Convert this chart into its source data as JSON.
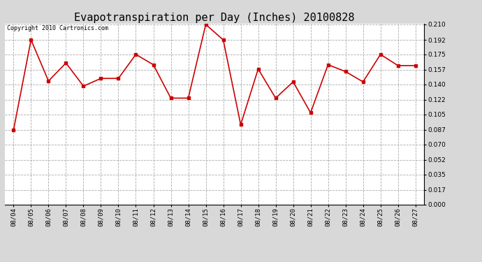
{
  "title": "Evapotranspiration per Day (Inches) 20100828",
  "copyright_text": "Copyright 2010 Cartronics.com",
  "dates": [
    "08/04",
    "08/05",
    "08/06",
    "08/07",
    "08/08",
    "08/09",
    "08/10",
    "08/11",
    "08/12",
    "08/13",
    "08/14",
    "08/15",
    "08/16",
    "08/17",
    "08/18",
    "08/19",
    "08/20",
    "08/21",
    "08/22",
    "08/23",
    "08/24",
    "08/25",
    "08/26",
    "08/27"
  ],
  "values": [
    0.087,
    0.192,
    0.144,
    0.165,
    0.138,
    0.147,
    0.147,
    0.175,
    0.163,
    0.124,
    0.124,
    0.21,
    0.192,
    0.093,
    0.158,
    0.124,
    0.143,
    0.107,
    0.163,
    0.155,
    0.143,
    0.175,
    0.162,
    0.162
  ],
  "line_color": "#cc0000",
  "marker": "s",
  "marker_size": 3,
  "line_width": 1.2,
  "bg_color": "#d8d8d8",
  "plot_bg_color": "#ffffff",
  "grid_color": "#aaaaaa",
  "grid_style": "--",
  "ylim": [
    0.0,
    0.21
  ],
  "yticks": [
    0.0,
    0.017,
    0.035,
    0.052,
    0.07,
    0.087,
    0.105,
    0.122,
    0.14,
    0.157,
    0.175,
    0.192,
    0.21
  ],
  "title_fontsize": 11,
  "copyright_fontsize": 6,
  "tick_fontsize": 6.5
}
